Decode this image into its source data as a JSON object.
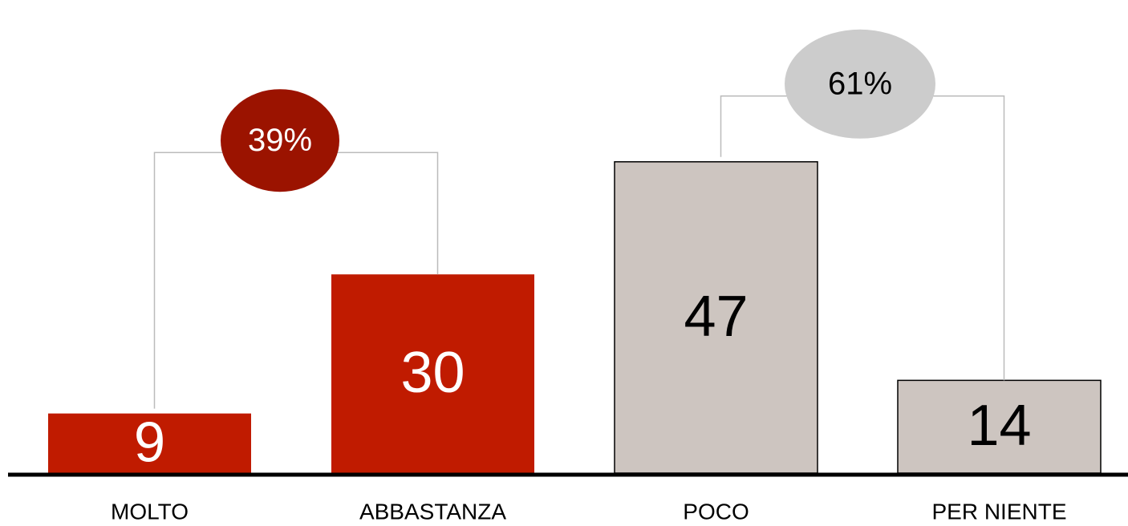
{
  "chart_data": {
    "type": "bar",
    "categories": [
      "MOLTO",
      "ABBASTANZA",
      "POCO",
      "PER NIENTE"
    ],
    "values": [
      9,
      30,
      47,
      14
    ],
    "colors": [
      "#c01b00",
      "#c01b00",
      "#cdc5c0",
      "#cdc5c0"
    ],
    "annotations": [
      {
        "text": "39%",
        "color": "#9b1300",
        "text_color": "#ffffff"
      },
      {
        "text": "61%",
        "color": "#cccccc",
        "text_color": "#000000"
      }
    ]
  }
}
